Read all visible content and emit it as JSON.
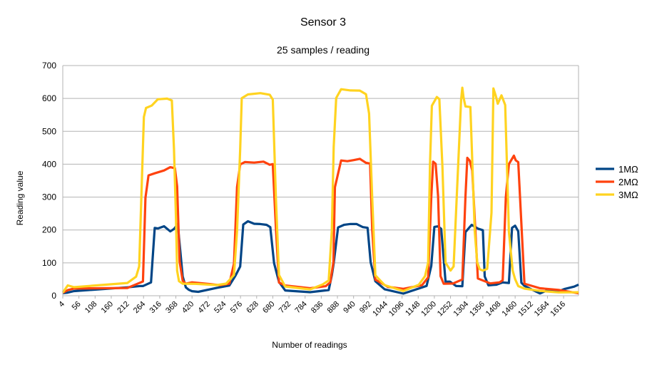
{
  "chart_data": {
    "type": "line",
    "title": "Sensor 3",
    "subtitle": "25 samples / reading",
    "xlabel": "Number of readings",
    "ylabel": "Reading value",
    "ylim": [
      0,
      700
    ],
    "yticks": [
      0,
      100,
      200,
      300,
      400,
      500,
      600,
      700
    ],
    "xlim": [
      4,
      1664
    ],
    "xticks": [
      4,
      56,
      108,
      160,
      212,
      264,
      316,
      368,
      420,
      472,
      524,
      576,
      628,
      680,
      732,
      784,
      836,
      888,
      940,
      992,
      1044,
      1096,
      1148,
      1200,
      1252,
      1304,
      1356,
      1408,
      1460,
      1512,
      1564,
      1616
    ],
    "grid": true,
    "legend_position": "right",
    "series": [
      {
        "name": "1MΩ",
        "color": "#004586",
        "x": [
          4,
          20,
          40,
          212,
          255,
          262,
          288,
          300,
          310,
          330,
          350,
          362,
          374,
          390,
          400,
          410,
          420,
          440,
          500,
          540,
          560,
          575,
          585,
          600,
          620,
          640,
          660,
          672,
          684,
          700,
          720,
          800,
          830,
          860,
          870,
          876,
          890,
          910,
          930,
          950,
          970,
          985,
          995,
          1010,
          1040,
          1100,
          1150,
          1175,
          1190,
          1200,
          1212,
          1222,
          1236,
          1250,
          1270,
          1290,
          1300,
          1320,
          1340,
          1356,
          1362,
          1374,
          1390,
          1400,
          1420,
          1440,
          1450,
          1460,
          1470,
          1480,
          1490,
          1510,
          1540,
          1560,
          1600,
          1620,
          1650,
          1664
        ],
        "y": [
          5,
          10,
          15,
          25,
          30,
          30,
          40,
          200,
          205,
          210,
          200,
          205,
          215,
          60,
          25,
          20,
          15,
          10,
          20,
          30,
          60,
          90,
          210,
          225,
          220,
          215,
          220,
          215,
          100,
          40,
          20,
          10,
          15,
          20,
          60,
          100,
          210,
          215,
          220,
          215,
          210,
          205,
          100,
          40,
          20,
          10,
          20,
          30,
          90,
          210,
          210,
          205,
          40,
          40,
          30,
          30,
          200,
          210,
          205,
          200,
          60,
          35,
          30,
          35,
          40,
          40,
          200,
          210,
          200,
          40,
          30,
          20,
          10,
          15,
          15,
          20,
          25,
          30
        ]
      },
      {
        "name": "2MΩ",
        "color": "#ff420e",
        "x": [
          4,
          20,
          40,
          212,
          250,
          262,
          270,
          280,
          300,
          330,
          350,
          365,
          372,
          380,
          390,
          400,
          420,
          480,
          510,
          540,
          555,
          565,
          575,
          590,
          620,
          650,
          670,
          680,
          690,
          700,
          720,
          800,
          850,
          865,
          875,
          880,
          900,
          920,
          940,
          960,
          980,
          993,
          1000,
          1010,
          1050,
          1100,
          1160,
          1180,
          1190,
          1196,
          1204,
          1212,
          1220,
          1230,
          1260,
          1290,
          1300,
          1306,
          1314,
          1322,
          1340,
          1380,
          1410,
          1420,
          1430,
          1440,
          1456,
          1462,
          1470,
          1490,
          1540,
          1600,
          1664
        ],
        "y": [
          10,
          20,
          20,
          25,
          35,
          40,
          300,
          365,
          375,
          385,
          390,
          385,
          330,
          100,
          45,
          40,
          40,
          35,
          30,
          40,
          100,
          330,
          400,
          405,
          400,
          405,
          405,
          400,
          200,
          40,
          30,
          25,
          30,
          40,
          100,
          330,
          410,
          410,
          415,
          410,
          410,
          400,
          200,
          50,
          30,
          20,
          30,
          60,
          300,
          405,
          400,
          300,
          60,
          35,
          35,
          50,
          300,
          420,
          410,
          380,
          50,
          40,
          40,
          50,
          300,
          400,
          425,
          410,
          400,
          40,
          20,
          15,
          10
        ]
      },
      {
        "name": "3MΩ",
        "color": "#ffd320",
        "x": [
          4,
          20,
          40,
          212,
          240,
          250,
          265,
          272,
          290,
          310,
          340,
          355,
          362,
          368,
          372,
          378,
          390,
          430,
          500,
          530,
          555,
          565,
          575,
          580,
          600,
          640,
          670,
          680,
          690,
          700,
          720,
          800,
          840,
          860,
          870,
          876,
          884,
          900,
          930,
          960,
          980,
          990,
          1000,
          1010,
          1040,
          1100,
          1150,
          1170,
          1180,
          1186,
          1192,
          1208,
          1216,
          1226,
          1236,
          1252,
          1262,
          1272,
          1286,
          1290,
          1294,
          1300,
          1316,
          1330,
          1338,
          1346,
          1356,
          1370,
          1384,
          1390,
          1398,
          1404,
          1416,
          1428,
          1440,
          1452,
          1460,
          1470,
          1490,
          1540,
          1600,
          1664
        ],
        "y": [
          10,
          30,
          30,
          35,
          60,
          90,
          550,
          570,
          580,
          600,
          600,
          590,
          450,
          250,
          80,
          40,
          35,
          35,
          30,
          35,
          60,
          200,
          450,
          600,
          610,
          610,
          610,
          600,
          300,
          60,
          30,
          20,
          30,
          50,
          200,
          450,
          600,
          625,
          630,
          625,
          610,
          560,
          300,
          60,
          30,
          15,
          30,
          60,
          100,
          400,
          580,
          605,
          600,
          400,
          100,
          80,
          90,
          300,
          600,
          630,
          600,
          580,
          570,
          200,
          100,
          80,
          80,
          85,
          250,
          630,
          600,
          590,
          610,
          580,
          200,
          80,
          50,
          30,
          20,
          15,
          10,
          10
        ]
      }
    ]
  }
}
